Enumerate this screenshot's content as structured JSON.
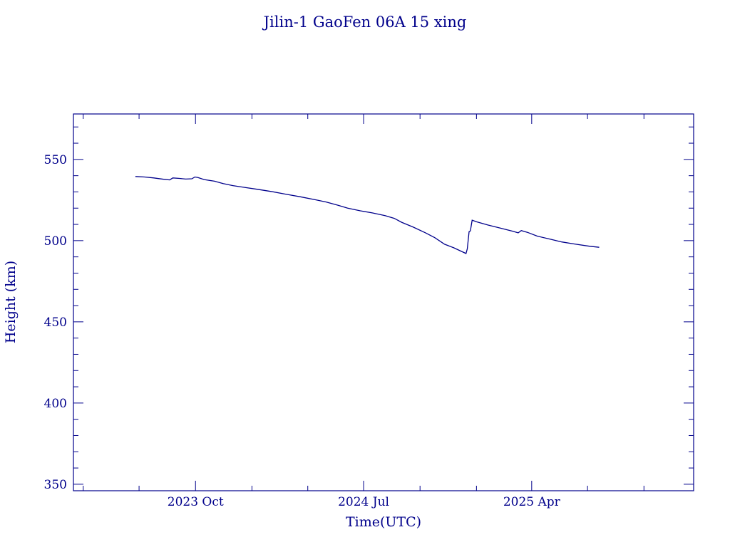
{
  "chart_data": {
    "type": "line",
    "title": "Jilin-1 GaoFen 06A 15 xing",
    "xlabel": "Time(UTC)",
    "ylabel": "Height (km)",
    "ylim": [
      346,
      578
    ],
    "xlim": [
      "2023-03-16",
      "2025-12-21"
    ],
    "yticks": [
      350,
      400,
      450,
      500,
      550
    ],
    "xticks": [
      {
        "date": "2023-10-01",
        "label": "2023 Oct"
      },
      {
        "date": "2024-07-01",
        "label": "2024 Jul"
      },
      {
        "date": "2025-04-01",
        "label": "2025 Apr"
      }
    ],
    "grid": false,
    "color": "#00008b",
    "series": [
      {
        "points": [
          [
            "2023-06-25",
            539.5
          ],
          [
            "2023-07-10",
            539.2
          ],
          [
            "2023-07-25",
            538.6
          ],
          [
            "2023-08-10",
            537.8
          ],
          [
            "2023-08-20",
            537.4
          ],
          [
            "2023-08-25",
            538.6
          ],
          [
            "2023-09-05",
            538.3
          ],
          [
            "2023-09-15",
            537.9
          ],
          [
            "2023-09-25",
            538.1
          ],
          [
            "2023-09-30",
            539.2
          ],
          [
            "2023-10-05",
            538.9
          ],
          [
            "2023-10-15",
            537.6
          ],
          [
            "2023-11-01",
            536.6
          ],
          [
            "2023-11-15",
            535.1
          ],
          [
            "2023-12-01",
            533.9
          ],
          [
            "2023-12-20",
            532.8
          ],
          [
            "2024-01-10",
            531.6
          ],
          [
            "2024-02-01",
            530.3
          ],
          [
            "2024-02-25",
            528.6
          ],
          [
            "2024-03-20",
            527.0
          ],
          [
            "2024-04-15",
            525.0
          ],
          [
            "2024-05-01",
            523.8
          ],
          [
            "2024-05-20",
            521.8
          ],
          [
            "2024-06-05",
            520.0
          ],
          [
            "2024-06-25",
            518.4
          ],
          [
            "2024-07-15",
            517.1
          ],
          [
            "2024-08-05",
            515.4
          ],
          [
            "2024-08-20",
            513.7
          ],
          [
            "2024-09-01",
            511.3
          ],
          [
            "2024-09-20",
            508.3
          ],
          [
            "2024-10-10",
            504.8
          ],
          [
            "2024-10-25",
            501.8
          ],
          [
            "2024-11-10",
            497.8
          ],
          [
            "2024-11-25",
            495.6
          ],
          [
            "2024-12-08",
            493.3
          ],
          [
            "2024-12-15",
            492.1
          ],
          [
            "2024-12-17",
            495.0
          ],
          [
            "2024-12-20",
            505.5
          ],
          [
            "2024-12-22",
            506.0
          ],
          [
            "2024-12-25",
            512.6
          ],
          [
            "2025-01-01",
            511.6
          ],
          [
            "2025-01-20",
            509.6
          ],
          [
            "2025-02-10",
            507.6
          ],
          [
            "2025-03-01",
            505.8
          ],
          [
            "2025-03-10",
            504.8
          ],
          [
            "2025-03-15",
            506.2
          ],
          [
            "2025-03-25",
            505.1
          ],
          [
            "2025-04-10",
            502.8
          ],
          [
            "2025-05-01",
            500.9
          ],
          [
            "2025-05-20",
            499.2
          ],
          [
            "2025-06-10",
            497.9
          ],
          [
            "2025-07-05",
            496.5
          ],
          [
            "2025-07-20",
            495.9
          ]
        ]
      }
    ]
  }
}
